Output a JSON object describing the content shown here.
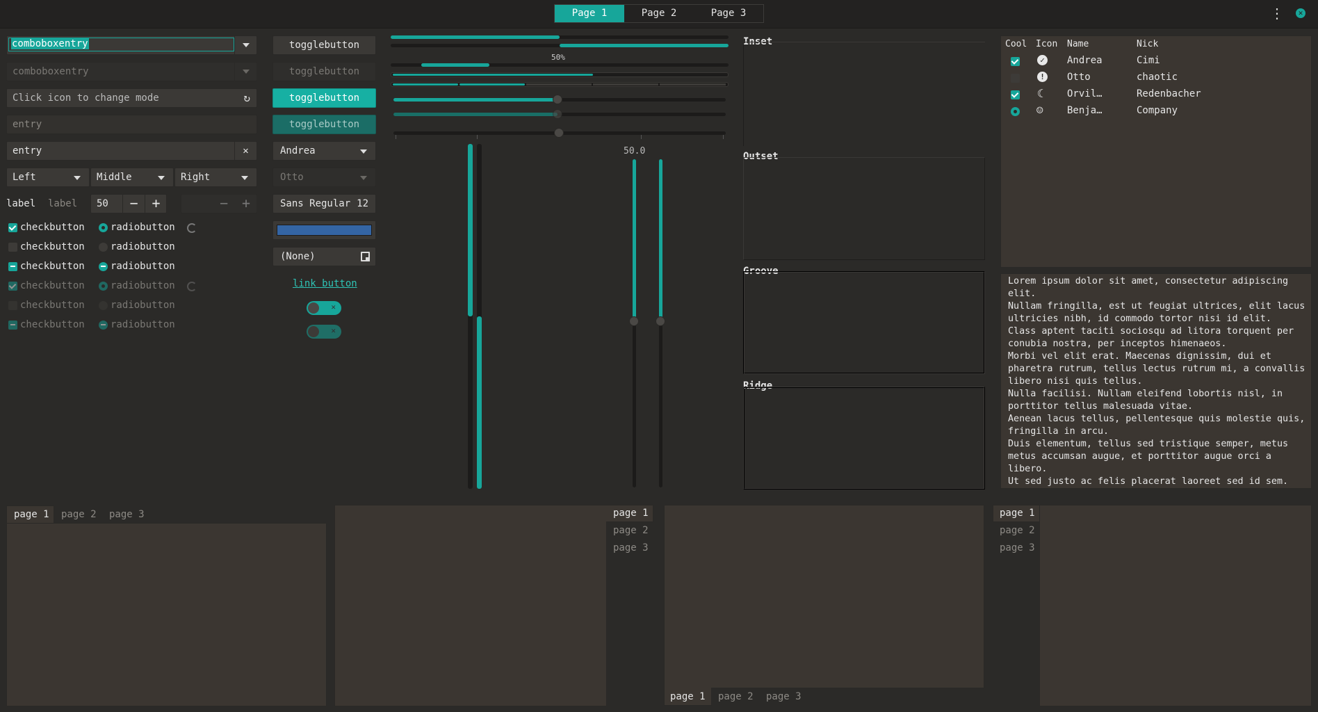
{
  "header": {
    "tabs": [
      "Page 1",
      "Page 2",
      "Page 3"
    ],
    "active": 0,
    "menu_icon": "vertical-dots-icon",
    "close_icon": "close-icon"
  },
  "entries": {
    "combo1": "comboboxentry",
    "combo2": "comboboxentry",
    "icon_entry_placeholder": "Click icon to change mode",
    "entry1_placeholder": "entry",
    "entry2": "entry",
    "combo_left": "Left",
    "combo_middle": "Middle",
    "combo_right": "Right",
    "label1": "label",
    "label2": "label",
    "spin_value": "50",
    "spin_disabled_value": ""
  },
  "checks": {
    "items": [
      {
        "check": "checkbutton",
        "radio": "radiobutton"
      },
      {
        "check": "checkbutton",
        "radio": "radiobutton"
      },
      {
        "check": "checkbutton",
        "radio": "radiobutton"
      },
      {
        "check": "checkbutton",
        "radio": "radiobutton"
      },
      {
        "check": "checkbutton",
        "radio": "radiobutton"
      },
      {
        "check": "checkbutton",
        "radio": "radiobutton"
      }
    ]
  },
  "buttons": {
    "toggle1": "togglebutton",
    "toggle2": "togglebutton",
    "toggle3": "togglebutton",
    "toggle4": "togglebutton",
    "combo_andrea": "Andrea",
    "combo_otto": "Otto",
    "font_name": "Sans Regular",
    "font_size": "12",
    "color_value": "#3465a4",
    "file_none": "(None)",
    "link": "link button",
    "switch1_on": true,
    "switch2_on": true
  },
  "progress": {
    "label": "50%",
    "bar1": 0.5,
    "bar2": 0.5,
    "scale_value": "50.0",
    "hscale1": 0.5,
    "hscale2": 0.5,
    "hscale3": 0.5
  },
  "frames": {
    "inset": "Inset",
    "outset": "Outset",
    "groove": "Groove",
    "ridge": "Ridge"
  },
  "tree": {
    "columns": [
      "Cool",
      "Icon",
      "Name",
      "Nick"
    ],
    "rows": [
      {
        "cool": true,
        "icon": "check-circle-icon",
        "name": "Andrea",
        "nick": "Cimi"
      },
      {
        "cool": false,
        "icon": "warning-icon",
        "name": "Otto",
        "nick": "chaotic"
      },
      {
        "cool": true,
        "icon": "moon-icon",
        "name": "Orvil…",
        "nick": "Redenbacher"
      },
      {
        "cool": "radio",
        "icon": "face-icon",
        "name": "Benja…",
        "nick": "Company"
      }
    ]
  },
  "textview": {
    "lines": [
      "Lorem ipsum dolor sit amet, consectetur adipiscing",
      "elit.",
      "Nullam fringilla, est ut feugiat ultrices, elit lacus",
      "ultricies nibh, id commodo tortor nisi id elit.",
      "Class aptent taciti sociosqu ad litora torquent per",
      "conubia nostra, per inceptos himenaeos.",
      "Morbi vel elit erat. Maecenas dignissim, dui et",
      "pharetra rutrum, tellus lectus rutrum mi, a convallis",
      "libero nisi quis tellus.",
      "Nulla facilisi. Nullam eleifend lobortis nisl, in",
      "porttitor tellus malesuada vitae.",
      "Aenean lacus tellus, pellentesque quis molestie quis,",
      "fringilla in arcu.",
      "Duis elementum, tellus sed tristique semper, metus",
      "metus accumsan augue, et porttitor augue orci a",
      "libero.",
      "Ut sed justo ac felis placerat laoreet sed id sem."
    ]
  },
  "notebooks": {
    "tabs": [
      "page 1",
      "page 2",
      "page 3"
    ]
  },
  "colors": {
    "accent": "#17a69a",
    "bg": "#2b2a28",
    "panel": "#3b3631"
  }
}
